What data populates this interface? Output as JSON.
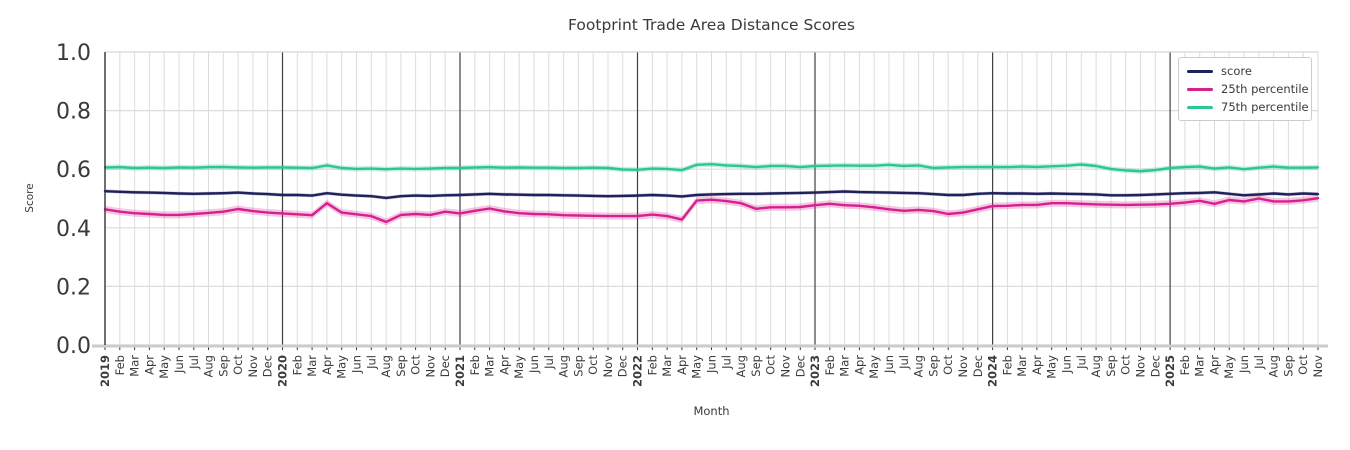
{
  "colors": {
    "background": "#ffffff",
    "grid": "#dcdcdc",
    "year_line": "#404040",
    "axis_text": "#3a3a3a",
    "left_spine": "#333333",
    "top_spine": "#d6d6d6",
    "bottom_spine": "#cbcbcb",
    "tick_mark": "#333333"
  },
  "chart_data": {
    "type": "line",
    "title": "Footprint Trade Area Distance Scores",
    "xlabel": "Month",
    "ylabel": "Score",
    "ylim": [
      0.0,
      1.0
    ],
    "yticks": [
      "0.0",
      "0.2",
      "0.4",
      "0.6",
      "0.8",
      "1.0"
    ],
    "grid": true,
    "legend_position": "upper right",
    "year_tick_indices": [
      0,
      12,
      24,
      36,
      48,
      60,
      72
    ],
    "x_tick_labels": [
      "2019",
      "Feb",
      "Mar",
      "Apr",
      "May",
      "Jun",
      "Jul",
      "Aug",
      "Sep",
      "Oct",
      "Nov",
      "Dec",
      "2020",
      "Feb",
      "Mar",
      "Apr",
      "May",
      "Jun",
      "Jul",
      "Aug",
      "Sep",
      "Oct",
      "Nov",
      "Dec",
      "2021",
      "Feb",
      "Mar",
      "Apr",
      "May",
      "Jun",
      "Jul",
      "Aug",
      "Sep",
      "Oct",
      "Nov",
      "Dec",
      "2022",
      "Feb",
      "Mar",
      "Apr",
      "May",
      "Jun",
      "Jul",
      "Aug",
      "Sep",
      "Oct",
      "Nov",
      "Dec",
      "2023",
      "Feb",
      "Mar",
      "Apr",
      "May",
      "Jun",
      "Jul",
      "Aug",
      "Sep",
      "Oct",
      "Nov",
      "Dec",
      "2024",
      "Feb",
      "Mar",
      "Apr",
      "May",
      "Jun",
      "Jul",
      "Aug",
      "Sep",
      "Oct",
      "Nov",
      "Dec",
      "2025",
      "Feb",
      "Mar",
      "Apr",
      "May",
      "Jun",
      "Jul",
      "Aug",
      "Sep",
      "Oct",
      "Nov"
    ],
    "series": [
      {
        "name": "score",
        "color": "#20215c",
        "band_halfwidth": 0.006,
        "values": [
          0.525,
          0.523,
          0.521,
          0.52,
          0.519,
          0.517,
          0.516,
          0.517,
          0.518,
          0.52,
          0.517,
          0.515,
          0.512,
          0.512,
          0.51,
          0.518,
          0.513,
          0.51,
          0.508,
          0.502,
          0.508,
          0.51,
          0.509,
          0.511,
          0.512,
          0.514,
          0.516,
          0.514,
          0.513,
          0.512,
          0.512,
          0.511,
          0.51,
          0.509,
          0.508,
          0.509,
          0.51,
          0.512,
          0.51,
          0.507,
          0.512,
          0.514,
          0.515,
          0.516,
          0.516,
          0.517,
          0.518,
          0.519,
          0.52,
          0.522,
          0.524,
          0.522,
          0.521,
          0.52,
          0.519,
          0.518,
          0.515,
          0.512,
          0.512,
          0.516,
          0.518,
          0.517,
          0.517,
          0.516,
          0.517,
          0.516,
          0.515,
          0.514,
          0.511,
          0.511,
          0.512,
          0.514,
          0.516,
          0.518,
          0.519,
          0.521,
          0.516,
          0.511,
          0.514,
          0.517,
          0.514,
          0.517,
          0.515
        ]
      },
      {
        "name": "25th percentile",
        "color": "#d6208e",
        "band_halfwidth": 0.012,
        "values": [
          0.463,
          0.455,
          0.45,
          0.447,
          0.444,
          0.444,
          0.447,
          0.451,
          0.455,
          0.464,
          0.457,
          0.452,
          0.449,
          0.446,
          0.443,
          0.484,
          0.452,
          0.446,
          0.44,
          0.42,
          0.444,
          0.447,
          0.444,
          0.455,
          0.449,
          0.458,
          0.466,
          0.456,
          0.45,
          0.447,
          0.446,
          0.443,
          0.442,
          0.441,
          0.44,
          0.44,
          0.44,
          0.445,
          0.44,
          0.428,
          0.493,
          0.496,
          0.491,
          0.484,
          0.465,
          0.47,
          0.47,
          0.471,
          0.477,
          0.482,
          0.477,
          0.475,
          0.47,
          0.463,
          0.458,
          0.461,
          0.457,
          0.447,
          0.452,
          0.463,
          0.474,
          0.475,
          0.478,
          0.478,
          0.484,
          0.484,
          0.482,
          0.48,
          0.479,
          0.478,
          0.479,
          0.48,
          0.482,
          0.486,
          0.492,
          0.482,
          0.495,
          0.49,
          0.5,
          0.49,
          0.49,
          0.494,
          0.501
        ]
      },
      {
        "name": "75th percentile",
        "color": "#2dc595",
        "band_halfwidth": 0.009,
        "values": [
          0.606,
          0.607,
          0.604,
          0.605,
          0.604,
          0.606,
          0.605,
          0.607,
          0.608,
          0.606,
          0.605,
          0.606,
          0.606,
          0.605,
          0.604,
          0.613,
          0.604,
          0.601,
          0.602,
          0.6,
          0.602,
          0.601,
          0.602,
          0.604,
          0.604,
          0.606,
          0.607,
          0.605,
          0.606,
          0.605,
          0.605,
          0.604,
          0.604,
          0.605,
          0.604,
          0.599,
          0.598,
          0.602,
          0.601,
          0.597,
          0.615,
          0.617,
          0.613,
          0.611,
          0.607,
          0.611,
          0.611,
          0.607,
          0.611,
          0.612,
          0.613,
          0.612,
          0.612,
          0.615,
          0.611,
          0.613,
          0.604,
          0.606,
          0.607,
          0.607,
          0.608,
          0.607,
          0.609,
          0.608,
          0.61,
          0.612,
          0.616,
          0.611,
          0.601,
          0.596,
          0.593,
          0.597,
          0.604,
          0.607,
          0.609,
          0.602,
          0.606,
          0.6,
          0.605,
          0.609,
          0.605,
          0.605,
          0.606
        ]
      }
    ]
  }
}
